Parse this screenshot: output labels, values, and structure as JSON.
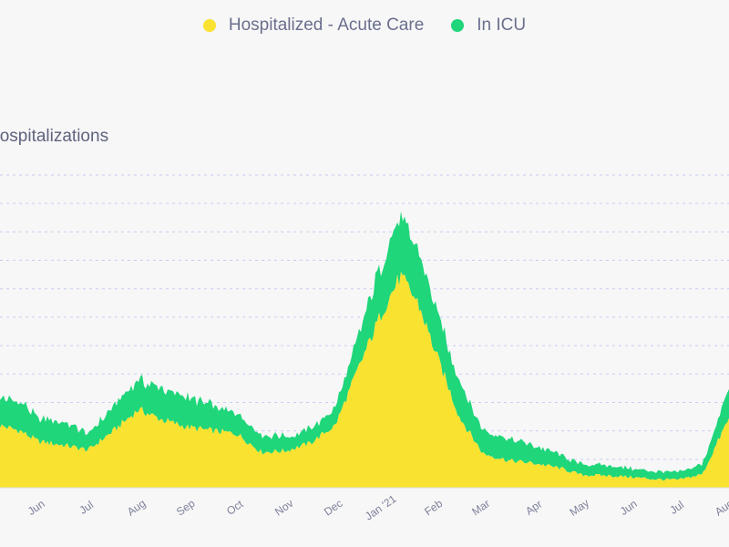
{
  "legend": {
    "items": [
      {
        "label": "Hospitalized - Acute Care",
        "color": "#f9e230"
      },
      {
        "label": "In ICU",
        "color": "#1fd67a"
      }
    ]
  },
  "chart_data": {
    "type": "area",
    "stacked": true,
    "title": "",
    "ylabel": "Hospitalizations",
    "xlabel": "",
    "grid": true,
    "x_ticks": [
      "Jun",
      "Jul",
      "Aug",
      "Sep",
      "Oct",
      "Nov",
      "Dec",
      "Jan '21",
      "Feb",
      "Mar",
      "Apr",
      "May",
      "Jun",
      "Jul",
      "Aug"
    ],
    "x": [
      "May 10",
      "May 25",
      "Jun 1",
      "Jun 15",
      "Jul 1",
      "Jul 15",
      "Aug 1",
      "Aug 15",
      "Sep 1",
      "Sep 15",
      "Oct 1",
      "Oct 15",
      "Nov 1",
      "Nov 15",
      "Dec 1",
      "Dec 15",
      "Jan 1",
      "Jan 10",
      "Jan 20",
      "Feb 1",
      "Feb 15",
      "Mar 1",
      "Mar 15",
      "Apr 1",
      "Apr 15",
      "May 1",
      "May 15",
      "Jun 1",
      "Jun 15",
      "Jul 1",
      "Jul 15",
      "Aug 1",
      "Aug 5"
    ],
    "ylim": [
      0,
      4400
    ],
    "series": [
      {
        "name": "Hospitalized - Acute Care",
        "color": "#f9e230",
        "values": [
          900,
          800,
          650,
          600,
          530,
          800,
          1100,
          950,
          850,
          800,
          760,
          500,
          520,
          630,
          880,
          1700,
          2500,
          2970,
          2600,
          1900,
          1000,
          480,
          380,
          340,
          280,
          180,
          170,
          150,
          120,
          110,
          190,
          900,
          1100
        ]
      },
      {
        "name": "In ICU",
        "color": "#1fd67a",
        "values": [
          380,
          420,
          340,
          330,
          230,
          340,
          420,
          440,
          420,
          360,
          290,
          240,
          200,
          200,
          240,
          450,
          720,
          800,
          760,
          650,
          500,
          340,
          300,
          250,
          190,
          150,
          140,
          120,
          110,
          110,
          140,
          380,
          450
        ]
      }
    ]
  }
}
